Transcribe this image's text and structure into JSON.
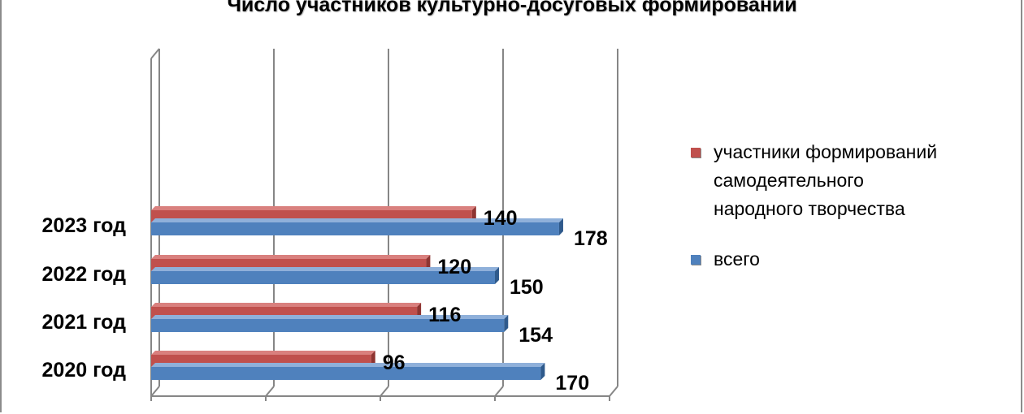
{
  "chart_data": {
    "type": "bar",
    "orientation": "horizontal",
    "title": "Число участников культурно-досуговых  формирований",
    "categories": [
      "2020 год",
      "2021 год",
      "2022 год",
      "2023 год"
    ],
    "series": [
      {
        "name": "всего",
        "color": "#4f81bd",
        "values": [
          170,
          154,
          150,
          178
        ]
      },
      {
        "name": "участники формирований самодеятельного народного творчества",
        "color": "#c0504d",
        "values": [
          96,
          116,
          120,
          140
        ]
      }
    ],
    "xlim": [
      0,
      200
    ],
    "grid": true,
    "legend_position": "right"
  },
  "legend": {
    "item1_lines": [
      "участники формирований",
      "самодеятельного",
      "народного творчества"
    ],
    "item2": "всего"
  }
}
